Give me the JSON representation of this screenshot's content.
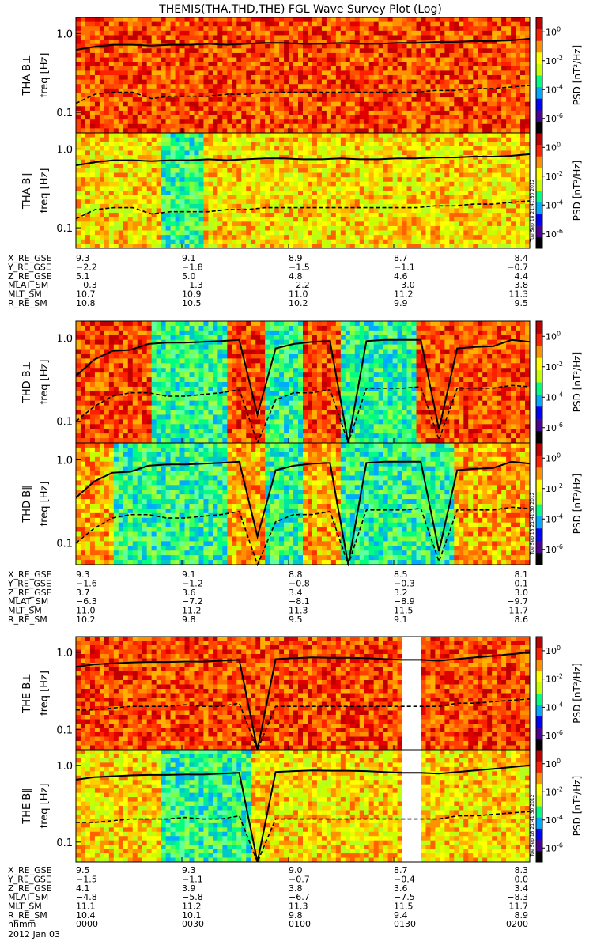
{
  "title": "THEMIS(THA,THD,THE) FGL Wave Survey Plot (Log)",
  "chart_data": {
    "type": "heatmap",
    "title": "THEMIS(THA,THD,THE) FGL Wave Survey Plot (Log)",
    "time_axis": {
      "label_hhmm": "hhmm",
      "date": "2012 Jan 03",
      "ticks": [
        "0000",
        "0030",
        "0100",
        "0130",
        "0200"
      ]
    },
    "y_axis": {
      "label": "freq [Hz]",
      "scale": "log",
      "ylim": [
        0.055,
        1.6
      ],
      "tick_values": [
        1.0,
        0.1
      ],
      "tick_labels": [
        "1.0",
        "0.1"
      ]
    },
    "colorbar": {
      "label": "PSD [nT²/Hz]",
      "scale": "log",
      "range": [
        1e-07,
        10
      ],
      "tick_exponents": [
        0,
        -2,
        -4,
        -6
      ],
      "colors": [
        "#000000",
        "#4b0096",
        "#0000ff",
        "#00aaff",
        "#00ff80",
        "#c8ff00",
        "#ffff00",
        "#ff9000",
        "#ff2000",
        "#c00000"
      ]
    },
    "stamp": "Tue Sep 18 21:41:30 2012",
    "panels": [
      {
        "label": "THA B⊥",
        "probe": "THA",
        "fill": "red",
        "gap": null,
        "line_solid": [
          0.62,
          0.68,
          0.72,
          0.72,
          0.7,
          0.72,
          0.72,
          0.74,
          0.72,
          0.74,
          0.76,
          0.76,
          0.74,
          0.74,
          0.76,
          0.74,
          0.74,
          0.76,
          0.76,
          0.78,
          0.78,
          0.8,
          0.8,
          0.82,
          0.86
        ],
        "line_dashed": [
          0.13,
          0.17,
          0.18,
          0.18,
          0.15,
          0.16,
          0.16,
          0.16,
          0.17,
          0.17,
          0.18,
          0.18,
          0.18,
          0.18,
          0.18,
          0.18,
          0.18,
          0.18,
          0.18,
          0.19,
          0.19,
          0.2,
          0.2,
          0.21,
          0.22
        ]
      },
      {
        "label": "THA B∥",
        "probe": "THA",
        "fill": "yellow",
        "gap": null,
        "line_solid": [
          0.62,
          0.68,
          0.72,
          0.72,
          0.7,
          0.72,
          0.72,
          0.74,
          0.72,
          0.74,
          0.76,
          0.76,
          0.74,
          0.74,
          0.76,
          0.74,
          0.74,
          0.76,
          0.76,
          0.78,
          0.78,
          0.8,
          0.8,
          0.82,
          0.86
        ],
        "line_dashed": [
          0.13,
          0.17,
          0.18,
          0.18,
          0.15,
          0.16,
          0.16,
          0.16,
          0.17,
          0.17,
          0.18,
          0.18,
          0.18,
          0.18,
          0.18,
          0.18,
          0.18,
          0.18,
          0.18,
          0.19,
          0.19,
          0.2,
          0.2,
          0.21,
          0.22
        ]
      },
      {
        "label": "THD B⊥",
        "probe": "THD",
        "fill": "mixed",
        "gap": null,
        "line_solid": [
          0.35,
          0.55,
          0.7,
          0.72,
          0.85,
          0.88,
          0.88,
          0.9,
          0.92,
          0.95,
          0.12,
          0.75,
          0.85,
          0.9,
          0.92,
          0.05,
          0.92,
          0.95,
          0.95,
          0.95,
          0.08,
          0.75,
          0.78,
          0.8,
          0.95,
          0.9
        ],
        "line_dashed": [
          0.1,
          0.15,
          0.2,
          0.22,
          0.22,
          0.2,
          0.2,
          0.21,
          0.22,
          0.24,
          0.05,
          0.18,
          0.22,
          0.22,
          0.24,
          0.05,
          0.25,
          0.25,
          0.25,
          0.26,
          0.06,
          0.25,
          0.25,
          0.25,
          0.27,
          0.26
        ]
      },
      {
        "label": "THD B∥",
        "probe": "THD",
        "fill": "mixed2",
        "gap": null,
        "line_solid": [
          0.35,
          0.55,
          0.7,
          0.72,
          0.85,
          0.88,
          0.88,
          0.9,
          0.92,
          0.95,
          0.12,
          0.75,
          0.85,
          0.9,
          0.92,
          0.05,
          0.92,
          0.95,
          0.95,
          0.95,
          0.08,
          0.75,
          0.78,
          0.8,
          0.95,
          0.9
        ],
        "line_dashed": [
          0.1,
          0.15,
          0.2,
          0.22,
          0.22,
          0.2,
          0.2,
          0.21,
          0.22,
          0.24,
          0.05,
          0.18,
          0.22,
          0.22,
          0.24,
          0.05,
          0.25,
          0.25,
          0.25,
          0.26,
          0.06,
          0.25,
          0.25,
          0.25,
          0.27,
          0.26
        ]
      },
      {
        "label": "THE B⊥",
        "probe": "THE",
        "fill": "red",
        "gap": [
          0.71,
          0.76
        ],
        "line_solid": [
          0.65,
          0.7,
          0.72,
          0.74,
          0.75,
          0.75,
          0.76,
          0.76,
          0.78,
          0.8,
          0.05,
          0.82,
          0.84,
          0.86,
          0.85,
          0.85,
          0.84,
          0.82,
          0.8,
          0.8,
          0.78,
          0.82,
          0.86,
          0.9,
          0.95,
          1.0
        ],
        "line_dashed": [
          0.18,
          0.18,
          0.19,
          0.2,
          0.2,
          0.2,
          0.21,
          0.2,
          0.2,
          0.22,
          0.05,
          0.2,
          0.2,
          0.2,
          0.2,
          0.2,
          0.2,
          0.2,
          0.2,
          0.2,
          0.2,
          0.22,
          0.22,
          0.23,
          0.24,
          0.25
        ]
      },
      {
        "label": "THE B∥",
        "probe": "THE",
        "fill": "yellow",
        "gap": [
          0.71,
          0.76
        ],
        "line_solid": [
          0.65,
          0.7,
          0.72,
          0.74,
          0.75,
          0.75,
          0.76,
          0.76,
          0.78,
          0.8,
          0.05,
          0.82,
          0.84,
          0.86,
          0.85,
          0.85,
          0.84,
          0.82,
          0.8,
          0.8,
          0.78,
          0.82,
          0.86,
          0.9,
          0.95,
          1.0
        ],
        "line_dashed": [
          0.18,
          0.18,
          0.19,
          0.2,
          0.2,
          0.2,
          0.21,
          0.2,
          0.2,
          0.22,
          0.05,
          0.2,
          0.2,
          0.2,
          0.2,
          0.2,
          0.2,
          0.2,
          0.2,
          0.2,
          0.2,
          0.22,
          0.22,
          0.23,
          0.24,
          0.25
        ]
      }
    ],
    "ephemeris_blocks": [
      {
        "probe": "THA",
        "rows": [
          {
            "name": "X_RE_GSE",
            "values": [
              "9.3",
              "9.1",
              "8.9",
              "8.7",
              "8.4"
            ]
          },
          {
            "name": "Y_RE_GSE",
            "values": [
              "−2.2",
              "−1.8",
              "−1.5",
              "−1.1",
              "−0.7"
            ]
          },
          {
            "name": "Z_RE_GSE",
            "values": [
              "5.1",
              "5.0",
              "4.8",
              "4.6",
              "4.4"
            ]
          },
          {
            "name": "MLAT_SM",
            "values": [
              "−0.3",
              "−1.3",
              "−2.2",
              "−3.0",
              "−3.8"
            ]
          },
          {
            "name": "MLT_SM",
            "values": [
              "10.7",
              "10.9",
              "11.0",
              "11.2",
              "11.3"
            ]
          },
          {
            "name": "R_RE_SM",
            "values": [
              "10.8",
              "10.5",
              "10.2",
              "9.9",
              "9.5"
            ]
          }
        ]
      },
      {
        "probe": "THD",
        "rows": [
          {
            "name": "X_RE_GSE",
            "values": [
              "9.3",
              "9.1",
              "8.8",
              "8.5",
              "8.1"
            ]
          },
          {
            "name": "Y_RE_GSE",
            "values": [
              "−1.6",
              "−1.2",
              "−0.8",
              "−0.3",
              "0.1"
            ]
          },
          {
            "name": "Z_RE_GSE",
            "values": [
              "3.7",
              "3.6",
              "3.4",
              "3.2",
              "3.0"
            ]
          },
          {
            "name": "MLAT_SM",
            "values": [
              "−6.3",
              "−7.2",
              "−8.1",
              "−8.9",
              "−9.7"
            ]
          },
          {
            "name": "MLT_SM",
            "values": [
              "11.0",
              "11.2",
              "11.3",
              "11.5",
              "11.7"
            ]
          },
          {
            "name": "R_RE_SM",
            "values": [
              "10.2",
              "9.8",
              "9.5",
              "9.1",
              "8.6"
            ]
          }
        ]
      },
      {
        "probe": "THE",
        "rows": [
          {
            "name": "X_RE_GSE",
            "values": [
              "9.5",
              "9.3",
              "9.0",
              "8.7",
              "8.3"
            ]
          },
          {
            "name": "Y_RE_GSE",
            "values": [
              "−1.5",
              "−1.1",
              "−0.7",
              "−0.4",
              "0.0"
            ]
          },
          {
            "name": "Z_RE_GSE",
            "values": [
              "4.1",
              "3.9",
              "3.8",
              "3.6",
              "3.4"
            ]
          },
          {
            "name": "MLAT_SM",
            "values": [
              "−4.8",
              "−5.8",
              "−6.7",
              "−7.5",
              "−8.3"
            ]
          },
          {
            "name": "MLT_SM",
            "values": [
              "11.1",
              "11.2",
              "11.3",
              "11.5",
              "11.7"
            ]
          },
          {
            "name": "R_RE_SM",
            "values": [
              "10.4",
              "10.1",
              "9.8",
              "9.4",
              "8.9"
            ]
          }
        ]
      }
    ]
  }
}
